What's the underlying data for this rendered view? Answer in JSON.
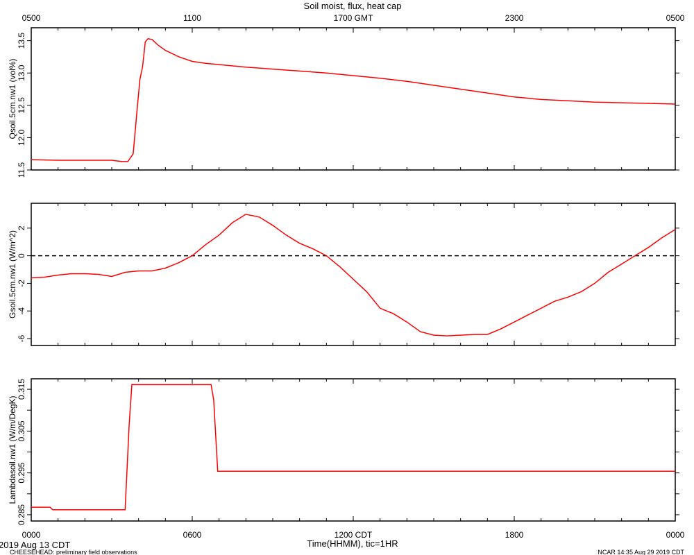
{
  "chart_data": {
    "type": "line",
    "title": "Soil moist, flux, heat cap",
    "top_axis": {
      "ticks": [
        "0500",
        "1100",
        "1700 GMT",
        "2300",
        "0500"
      ]
    },
    "bottom_axis": {
      "ticks": [
        "0000",
        "0600",
        "1200 CDT",
        "1800",
        "0000"
      ],
      "xlabel": "Time(HHMM), tic=1HR"
    },
    "date_label": "2019 Aug 13 CDT",
    "footer_left": "CHEESEHEAD: preliminary field observations",
    "footer_right": "NCAR 14:35 Aug 29 2019 CDT",
    "xlim": [
      0,
      24
    ],
    "line_color": "#ff0000",
    "panels": [
      {
        "ylabel": "Qsoil.5cm.nw1 (vol%)",
        "ylim": [
          11.5,
          13.7
        ],
        "yticks": [
          11.5,
          12.0,
          12.5,
          13.0,
          13.5
        ],
        "ytick_labels": [
          "11.5",
          "12.0",
          "12.5",
          "13.0",
          "13.5"
        ],
        "zero_line": false,
        "series": [
          {
            "x": [
              0,
              1,
              2,
              3,
              3.2,
              3.4,
              3.6,
              3.8,
              3.95,
              4.05,
              4.15,
              4.25,
              4.35,
              4.5,
              4.7,
              5,
              5.5,
              6,
              6.5,
              7,
              8,
              9,
              10,
              11,
              12,
              13,
              14,
              15,
              16,
              17,
              18,
              19,
              20,
              21,
              22,
              23,
              24
            ],
            "y": [
              11.66,
              11.65,
              11.65,
              11.65,
              11.64,
              11.63,
              11.63,
              11.75,
              12.45,
              12.9,
              13.1,
              13.48,
              13.53,
              13.52,
              13.44,
              13.35,
              13.25,
              13.18,
              13.15,
              13.13,
              13.09,
              13.06,
              13.03,
              13.0,
              12.96,
              12.92,
              12.87,
              12.81,
              12.75,
              12.69,
              12.63,
              12.59,
              12.57,
              12.55,
              12.54,
              12.53,
              12.52
            ]
          }
        ]
      },
      {
        "ylabel": "Gsoil.5cm.nw1 (W/m^2)",
        "ylim": [
          -6.5,
          3.8
        ],
        "yticks": [
          -6,
          -4,
          -2,
          0,
          2
        ],
        "ytick_labels": [
          "-6",
          "-4",
          "-2",
          "0",
          "2"
        ],
        "zero_line": true,
        "series": [
          {
            "x": [
              0,
              0.5,
              1,
              1.5,
              2,
              2.5,
              3,
              3.5,
              4,
              4.5,
              5,
              5.5,
              6,
              6.5,
              7,
              7.5,
              8,
              8.5,
              9,
              9.5,
              10,
              10.5,
              11,
              11.5,
              12,
              12.5,
              13,
              13.5,
              14,
              14.5,
              15,
              15.5,
              16,
              16.5,
              17,
              17.5,
              18,
              18.5,
              19,
              19.5,
              20,
              20.5,
              21,
              21.5,
              22,
              22.5,
              23,
              23.5,
              24
            ],
            "y": [
              -1.6,
              -1.55,
              -1.4,
              -1.3,
              -1.3,
              -1.35,
              -1.5,
              -1.2,
              -1.1,
              -1.1,
              -0.9,
              -0.5,
              0.0,
              0.8,
              1.5,
              2.4,
              3.0,
              2.8,
              2.2,
              1.5,
              0.9,
              0.5,
              0.0,
              -0.8,
              -1.7,
              -2.6,
              -3.8,
              -4.2,
              -4.8,
              -5.5,
              -5.75,
              -5.8,
              -5.75,
              -5.7,
              -5.7,
              -5.3,
              -4.8,
              -4.3,
              -3.8,
              -3.3,
              -3.0,
              -2.6,
              -2.0,
              -1.2,
              -0.6,
              0.0,
              0.6,
              1.3,
              1.9
            ]
          }
        ]
      },
      {
        "ylabel": "Lambdasoil.nw1 (W/m/DegK)",
        "ylim": [
          0.2835,
          0.3175
        ],
        "yticks": [
          0.285,
          0.29,
          0.295,
          0.3,
          0.305,
          0.31,
          0.315
        ],
        "ytick_labels": [
          "0.285",
          "",
          "0.295",
          "",
          "0.305",
          "",
          "0.315"
        ],
        "zero_line": false,
        "series": [
          {
            "x": [
              0,
              0.7,
              0.8,
              3.5,
              3.65,
              3.75,
              6.7,
              6.8,
              6.95,
              24
            ],
            "y": [
              0.2868,
              0.2868,
              0.2862,
              0.2862,
              0.3065,
              0.3161,
              0.3161,
              0.3125,
              0.2954,
              0.2954
            ]
          }
        ]
      }
    ]
  }
}
